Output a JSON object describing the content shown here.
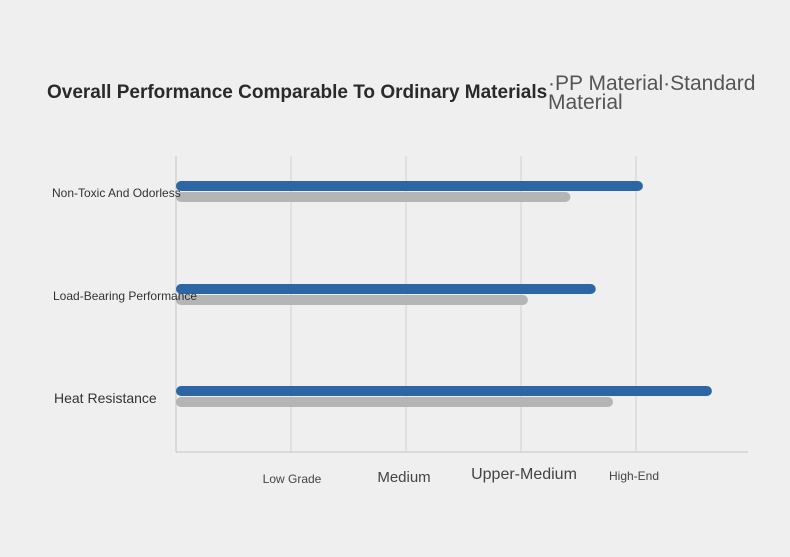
{
  "chart_data": {
    "type": "bar",
    "orientation": "horizontal",
    "title": "Overall Performance Comparable To Ordinary Materials",
    "legend": {
      "placement": "top-right",
      "entries": [
        "·PP Material",
        "·Standard Material"
      ]
    },
    "categories": [
      "Non-Toxic And Odorless",
      "Load-Bearing Performance",
      "Heat Resistance"
    ],
    "series": [
      {
        "name": "PP Material",
        "color": "#2d66a4",
        "values": [
          4.06,
          3.65,
          4.66
        ]
      },
      {
        "name": "Standard Material",
        "color": "#b5b5b5",
        "values": [
          3.43,
          3.06,
          3.8
        ]
      }
    ],
    "x_ticks": [
      "Low Grade",
      "Medium",
      "Upper-Medium",
      "High-End"
    ],
    "x_tick_values": [
      1,
      2,
      3,
      4
    ],
    "xlim": [
      0,
      5
    ],
    "grid": true
  }
}
